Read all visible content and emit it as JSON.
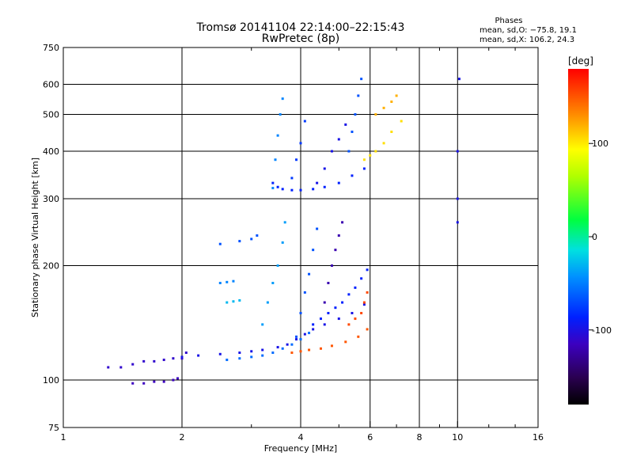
{
  "chart_data": {
    "type": "scatter",
    "title": "Tromsø 20141104 22:14:00–22:15:43",
    "subtitle": "RwPretec (8p)",
    "xlabel": "Frequency [MHz]",
    "ylabel": "Stationary phase Virtual Height [km]",
    "x_scale": "log",
    "y_scale": "log",
    "xlim": [
      1,
      16
    ],
    "ylim": [
      75,
      750
    ],
    "x_ticks": [
      1,
      2,
      4,
      6,
      8,
      10,
      16
    ],
    "y_ticks": [
      75,
      100,
      200,
      300,
      400,
      500,
      600,
      750
    ],
    "grid": true,
    "phase_box": {
      "title": "Phases",
      "line1": "mean, sd,O: −75.8, 19.1",
      "line2": "mean, sd,X: 106.2, 24.3"
    },
    "colorbar": {
      "unit": "[deg]",
      "range": [
        -180,
        180
      ],
      "ticks": [
        100,
        0,
        -100
      ],
      "colormap": "rainbow"
    },
    "traces": [
      {
        "x": [
          1.3,
          1.4,
          1.5,
          1.6,
          1.7,
          1.8,
          1.9,
          2.0,
          2.05
        ],
        "y": [
          108,
          108,
          110,
          112,
          112,
          113,
          114,
          114,
          118
        ],
        "phase": -110
      },
      {
        "x": [
          1.5,
          1.6,
          1.7,
          1.8,
          1.9,
          1.95
        ],
        "y": [
          98,
          98,
          99,
          99,
          100,
          101
        ],
        "phase": -115
      },
      {
        "x": [
          2.0,
          2.2,
          2.5,
          2.8,
          3.0,
          3.2,
          3.5,
          3.7,
          3.9,
          4.1,
          4.3,
          4.6,
          5.0,
          5.4,
          5.8
        ],
        "y": [
          115,
          116,
          117,
          118,
          119,
          120,
          122,
          124,
          128,
          132,
          136,
          140,
          145,
          150,
          158
        ],
        "phase": -100
      },
      {
        "x": [
          2.6,
          2.8,
          3.0,
          3.2,
          3.4,
          3.6,
          3.8,
          4.0,
          4.2
        ],
        "y": [
          113,
          114,
          115,
          116,
          118,
          121,
          124,
          128,
          133
        ],
        "phase": -60
      },
      {
        "x": [
          3.8,
          4.0,
          4.2,
          4.5,
          4.8,
          5.2,
          5.6,
          5.9
        ],
        "y": [
          118,
          119,
          120,
          121,
          123,
          126,
          130,
          136
        ],
        "phase": 150
      },
      {
        "x": [
          5.3,
          5.5,
          5.7,
          5.8,
          5.9
        ],
        "y": [
          140,
          145,
          150,
          160,
          170
        ],
        "phase": 155
      },
      {
        "x": [
          3.2,
          3.3,
          3.4,
          3.5,
          3.6,
          3.65
        ],
        "y": [
          140,
          160,
          180,
          200,
          230,
          260
        ],
        "phase": -40
      },
      {
        "x": [
          3.9,
          4.0,
          4.1,
          4.2,
          4.3,
          4.4
        ],
        "y": [
          130,
          150,
          170,
          190,
          220,
          250
        ],
        "phase": -70
      },
      {
        "x": [
          4.6,
          4.7,
          4.8,
          4.9,
          5.0,
          5.1
        ],
        "y": [
          160,
          180,
          200,
          220,
          240,
          260
        ],
        "phase": -120
      },
      {
        "x": [
          4.3,
          4.5,
          4.7,
          4.9,
          5.1,
          5.3,
          5.5,
          5.7,
          5.9
        ],
        "y": [
          140,
          145,
          150,
          155,
          160,
          168,
          175,
          185,
          195
        ],
        "phase": -90
      },
      {
        "x": [
          2.5,
          2.8,
          3.0,
          3.1
        ],
        "y": [
          228,
          232,
          235,
          240
        ],
        "phase": -70
      },
      {
        "x": [
          2.5,
          2.6,
          2.7
        ],
        "y": [
          180,
          181,
          182
        ],
        "phase": -50
      },
      {
        "x": [
          2.6,
          2.7,
          2.8
        ],
        "y": [
          160,
          161,
          162
        ],
        "phase": -30
      },
      {
        "x": [
          3.4,
          3.5,
          3.6,
          3.8,
          4.0,
          4.3,
          4.6,
          5.0,
          5.4,
          5.8
        ],
        "y": [
          330,
          322,
          318,
          316,
          316,
          318,
          322,
          330,
          345,
          360
        ],
        "phase": -90
      },
      {
        "x": [
          3.4,
          3.45,
          3.5,
          3.55,
          3.6
        ],
        "y": [
          320,
          380,
          440,
          500,
          550
        ],
        "phase": -50
      },
      {
        "x": [
          3.8,
          3.9,
          4.0,
          4.1
        ],
        "y": [
          340,
          380,
          420,
          480
        ],
        "phase": -80
      },
      {
        "x": [
          4.4,
          4.6,
          4.8,
          5.0,
          5.2
        ],
        "y": [
          330,
          360,
          400,
          430,
          470
        ],
        "phase": -100
      },
      {
        "x": [
          5.3,
          5.4,
          5.5,
          5.6,
          5.7
        ],
        "y": [
          400,
          450,
          500,
          560,
          620
        ],
        "phase": -70
      },
      {
        "x": [
          5.8,
          6.0,
          6.2,
          6.5,
          6.8,
          7.2
        ],
        "y": [
          380,
          390,
          400,
          420,
          450,
          480
        ],
        "phase": 105
      },
      {
        "x": [
          6.2,
          6.5,
          6.8,
          7.0
        ],
        "y": [
          500,
          520,
          540,
          560
        ],
        "phase": 120
      },
      {
        "x": [
          10.0,
          10.0,
          10.0,
          10.1
        ],
        "y": [
          260,
          300,
          400,
          620
        ],
        "phase": -100
      }
    ]
  }
}
